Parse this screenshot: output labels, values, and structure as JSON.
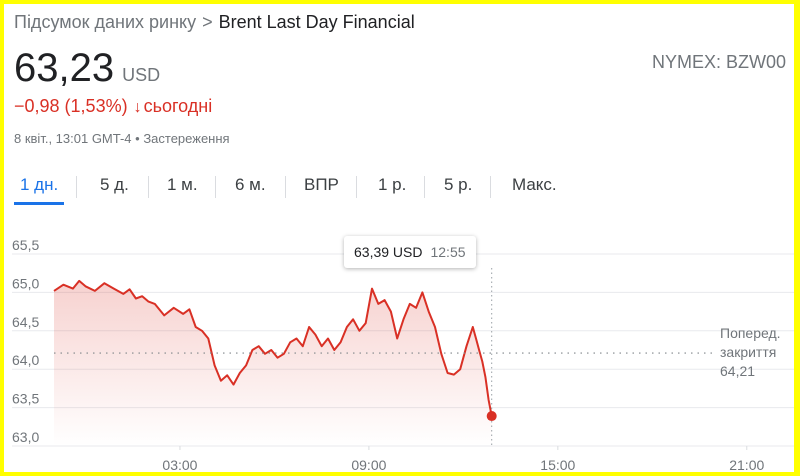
{
  "breadcrumb": {
    "parent": "Підсумок даних ринку",
    "separator": ">",
    "current": "Brent Last Day Financial"
  },
  "quote": {
    "price": "63,23",
    "currency": "USD",
    "ticker": "NYMEX: BZW00"
  },
  "change": {
    "text": "−0,98 (1,53%)",
    "arrow": "↓",
    "period": "сьогодні"
  },
  "meta": {
    "text": "8 квіт., 13:01 GMT-4 • Застереження"
  },
  "tabs": [
    {
      "label": "1 дн.",
      "active": true
    },
    {
      "label": "5 д."
    },
    {
      "label": "1 м."
    },
    {
      "label": "6 м."
    },
    {
      "label": "ВПР"
    },
    {
      "label": "1 р."
    },
    {
      "label": "5 р."
    },
    {
      "label": "Макс."
    }
  ],
  "tooltip": {
    "price": "63,39 USD",
    "time": "12:55"
  },
  "prev_close": {
    "line1": "Поперед.",
    "line2": "закриття",
    "value": "64,21"
  },
  "colors": {
    "negative": "#d93025",
    "accent": "#1a73e8",
    "border": "#ffff00"
  },
  "chart_data": {
    "type": "area",
    "ylim": [
      63.0,
      65.5
    ],
    "yticks": [
      "65,5",
      "65,0",
      "64,5",
      "64,0",
      "63,5",
      "63,0"
    ],
    "ytick_values": [
      65.5,
      65.0,
      64.5,
      64.0,
      63.5,
      63.0
    ],
    "xticks": [
      "03:00",
      "09:00",
      "15:00",
      "21:00"
    ],
    "xtick_hours": [
      3,
      9,
      15,
      21
    ],
    "xlim_hours": [
      -1.0,
      22.5
    ],
    "prev_close_value": 64.21,
    "hover_hour": 12.9,
    "series": [
      {
        "values": [
          [
            -1.0,
            65.02
          ],
          [
            -0.7,
            65.1
          ],
          [
            -0.4,
            65.05
          ],
          [
            -0.2,
            65.15
          ],
          [
            0.0,
            65.08
          ],
          [
            0.3,
            65.02
          ],
          [
            0.6,
            65.12
          ],
          [
            0.9,
            65.05
          ],
          [
            1.2,
            64.98
          ],
          [
            1.4,
            65.04
          ],
          [
            1.6,
            64.92
          ],
          [
            1.8,
            64.95
          ],
          [
            2.0,
            64.88
          ],
          [
            2.2,
            64.85
          ],
          [
            2.5,
            64.7
          ],
          [
            2.8,
            64.8
          ],
          [
            3.1,
            64.72
          ],
          [
            3.3,
            64.78
          ],
          [
            3.5,
            64.55
          ],
          [
            3.7,
            64.5
          ],
          [
            3.9,
            64.4
          ],
          [
            4.1,
            64.05
          ],
          [
            4.3,
            63.85
          ],
          [
            4.5,
            63.92
          ],
          [
            4.7,
            63.8
          ],
          [
            4.9,
            63.95
          ],
          [
            5.1,
            64.05
          ],
          [
            5.3,
            64.25
          ],
          [
            5.5,
            64.3
          ],
          [
            5.7,
            64.2
          ],
          [
            5.9,
            64.25
          ],
          [
            6.1,
            64.15
          ],
          [
            6.3,
            64.2
          ],
          [
            6.5,
            64.35
          ],
          [
            6.7,
            64.4
          ],
          [
            6.9,
            64.3
          ],
          [
            7.1,
            64.55
          ],
          [
            7.3,
            64.45
          ],
          [
            7.5,
            64.3
          ],
          [
            7.7,
            64.4
          ],
          [
            7.9,
            64.25
          ],
          [
            8.1,
            64.35
          ],
          [
            8.3,
            64.55
          ],
          [
            8.5,
            64.65
          ],
          [
            8.7,
            64.5
          ],
          [
            8.9,
            64.6
          ],
          [
            9.1,
            65.05
          ],
          [
            9.3,
            64.85
          ],
          [
            9.5,
            64.9
          ],
          [
            9.7,
            64.75
          ],
          [
            9.9,
            64.4
          ],
          [
            10.1,
            64.65
          ],
          [
            10.3,
            64.85
          ],
          [
            10.5,
            64.8
          ],
          [
            10.7,
            65.0
          ],
          [
            10.9,
            64.75
          ],
          [
            11.1,
            64.55
          ],
          [
            11.3,
            64.2
          ],
          [
            11.5,
            63.95
          ],
          [
            11.7,
            63.93
          ],
          [
            11.9,
            64.0
          ],
          [
            12.1,
            64.3
          ],
          [
            12.3,
            64.55
          ],
          [
            12.4,
            64.4
          ],
          [
            12.5,
            64.25
          ],
          [
            12.6,
            64.1
          ],
          [
            12.7,
            63.9
          ],
          [
            12.8,
            63.6
          ],
          [
            12.9,
            63.39
          ]
        ]
      }
    ]
  }
}
